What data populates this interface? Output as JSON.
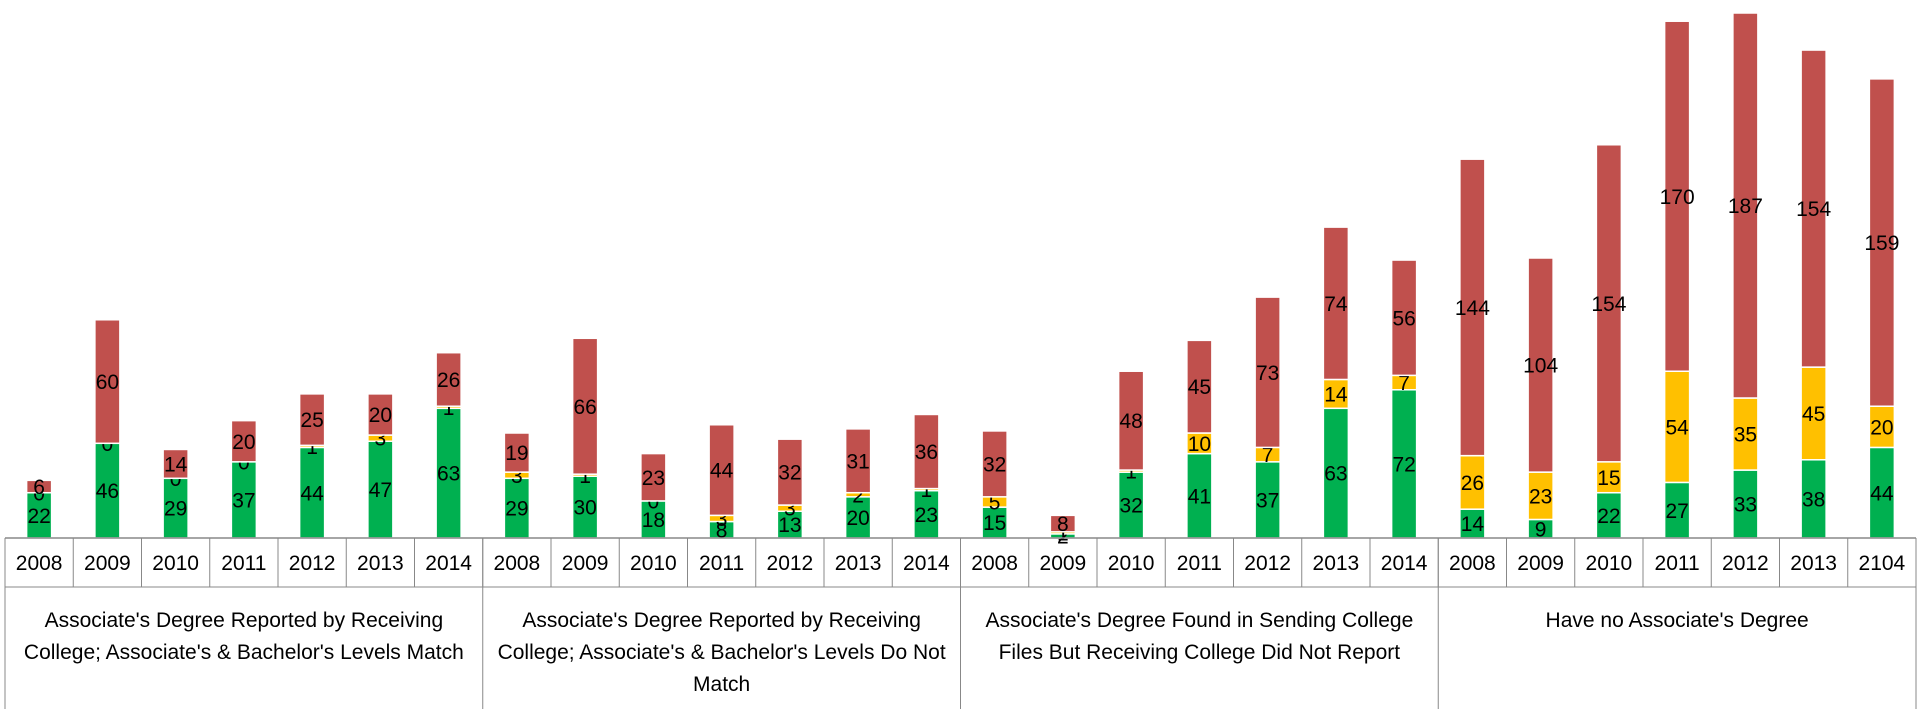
{
  "chart_data": {
    "type": "stacked_bar",
    "categories": [
      "2008",
      "2009",
      "2010",
      "2011",
      "2012",
      "2013",
      "2014",
      "2008",
      "2009",
      "2010",
      "2011",
      "2012",
      "2013",
      "2014",
      "2008",
      "2009",
      "2010",
      "2011",
      "2012",
      "2013",
      "2014",
      "2008",
      "2009",
      "2010",
      "2011",
      "2012",
      "2013",
      "2104"
    ],
    "groups": [
      "Associate's Degree Reported by Receiving College; Associate's & Bachelor's Levels Match",
      "Associate's Degree Reported by Receiving College; Associate's & Bachelor's Levels Do Not Match",
      "Associate's Degree Found in Sending College Files But Receiving College Did Not Report",
      "Have no Associate's Degree"
    ],
    "series": [
      {
        "color": "#00b050",
        "values": [
          22,
          46,
          29,
          37,
          44,
          47,
          63,
          29,
          30,
          18,
          8,
          13,
          20,
          23,
          15,
          2,
          32,
          41,
          37,
          63,
          72,
          14,
          9,
          22,
          27,
          33,
          38,
          44
        ]
      },
      {
        "color": "#ffc000",
        "values": [
          0,
          0,
          0,
          0,
          1,
          3,
          1,
          3,
          1,
          0,
          3,
          3,
          2,
          1,
          5,
          1,
          1,
          10,
          7,
          14,
          7,
          26,
          23,
          15,
          54,
          35,
          45,
          20
        ]
      },
      {
        "color": "#c0504d",
        "values": [
          6,
          60,
          14,
          20,
          25,
          20,
          26,
          19,
          66,
          23,
          44,
          32,
          31,
          36,
          32,
          8,
          48,
          45,
          73,
          74,
          56,
          144,
          104,
          154,
          170,
          187,
          154,
          159
        ]
      }
    ]
  }
}
